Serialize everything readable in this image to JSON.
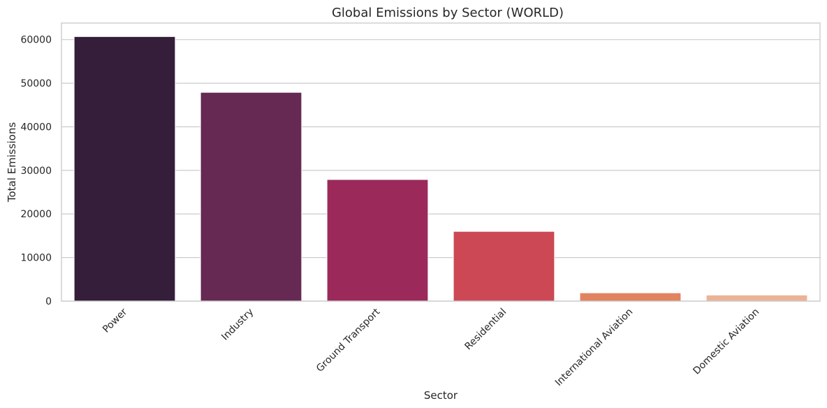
{
  "chart_data": {
    "type": "bar",
    "title": "Global Emissions by Sector (WORLD)",
    "xlabel": "Sector",
    "ylabel": "Total Emissions",
    "categories": [
      "Power",
      "Industry",
      "Ground Transport",
      "Residential",
      "International Aviation",
      "Domestic Aviation"
    ],
    "values": [
      60700,
      47900,
      27900,
      16000,
      1900,
      1400
    ],
    "ylim": [
      0,
      63800
    ],
    "yticks": [
      0,
      10000,
      20000,
      30000,
      40000,
      50000,
      60000
    ],
    "ytick_labels": [
      "0",
      "10000",
      "20000",
      "30000",
      "40000",
      "50000",
      "60000"
    ],
    "colors": [
      "#341e39",
      "#662953",
      "#9b2a5b",
      "#cc4855",
      "#e2835f",
      "#ebb395"
    ],
    "grid": "horizontal",
    "legend": "none"
  }
}
